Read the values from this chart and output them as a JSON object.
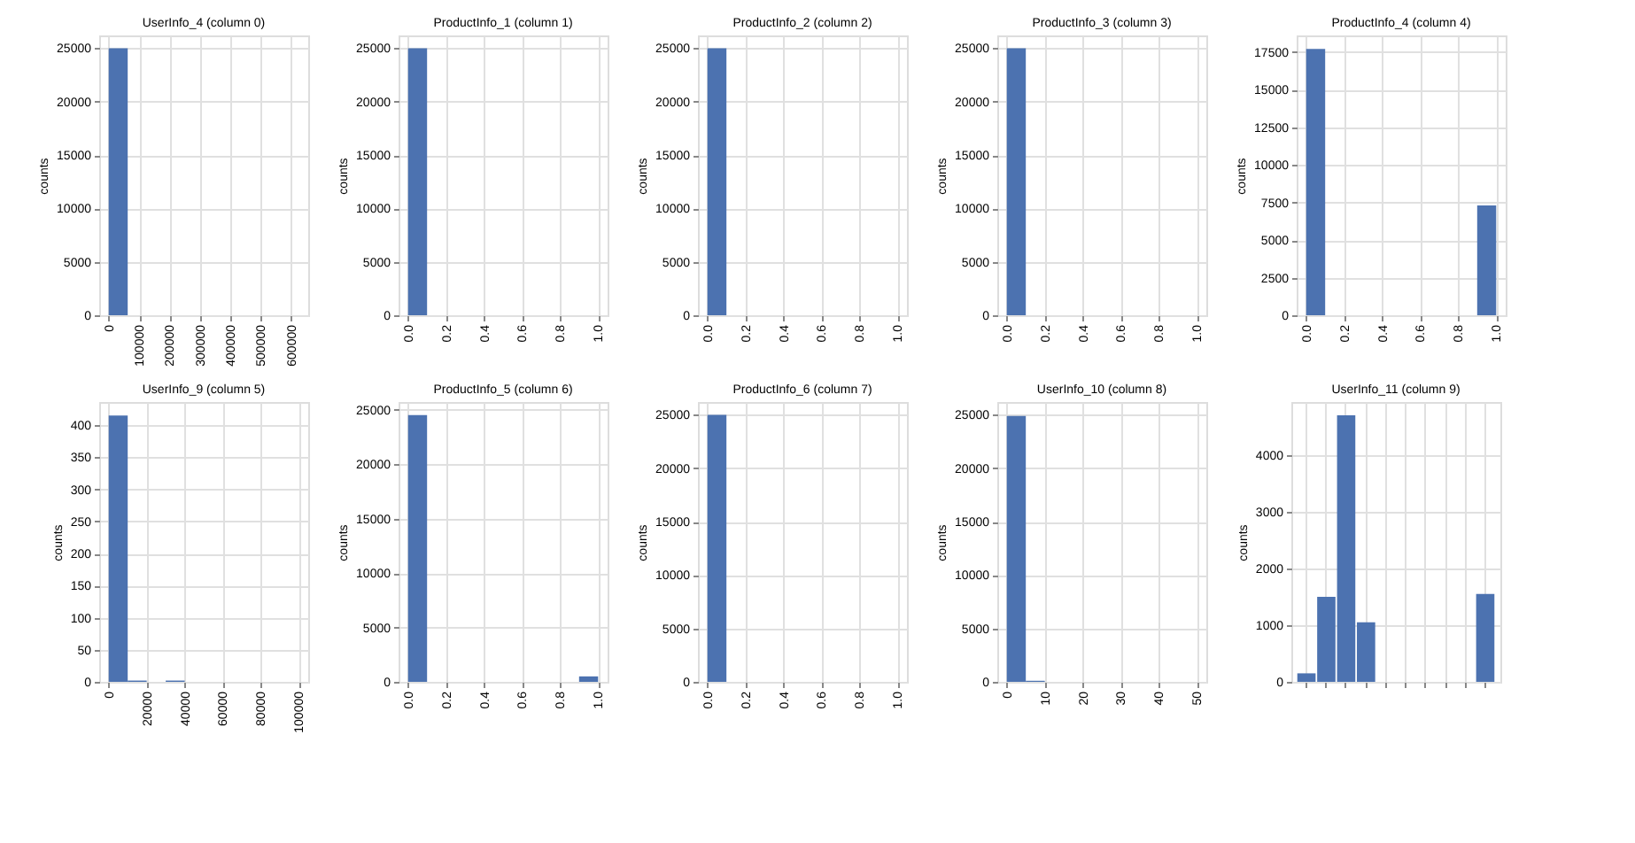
{
  "chart_data": [
    {
      "type": "histogram",
      "title": "UserInfo_4 (column 0)",
      "ylabel": "counts",
      "color": "#4c72b0",
      "grid": true,
      "bins": [
        0,
        62500,
        125000,
        187500,
        250000,
        312500,
        375000,
        437500,
        500000,
        562500,
        625000
      ],
      "values": [
        25000,
        0,
        0,
        0,
        0,
        0,
        0,
        0,
        0,
        0
      ],
      "xlim": [
        -31250,
        656250
      ],
      "ylim": [
        0,
        26200
      ],
      "xticks": [
        0,
        100000,
        200000,
        300000,
        400000,
        500000,
        600000
      ],
      "yticks": [
        0,
        5000,
        10000,
        15000,
        20000,
        25000
      ]
    },
    {
      "type": "histogram",
      "title": "ProductInfo_1 (column 1)",
      "ylabel": "counts",
      "color": "#4c72b0",
      "grid": true,
      "bins": [
        0,
        0.1,
        0.2,
        0.3,
        0.4,
        0.5,
        0.6,
        0.7,
        0.8,
        0.9,
        1.0
      ],
      "values": [
        25000,
        0,
        0,
        0,
        0,
        0,
        0,
        0,
        0,
        0
      ],
      "xlim": [
        -0.05,
        1.05
      ],
      "ylim": [
        0,
        26200
      ],
      "xticks": [
        {
          "value": 0,
          "label": "0.0"
        },
        {
          "value": 0.2,
          "label": "0.2"
        },
        {
          "value": 0.4,
          "label": "0.4"
        },
        {
          "value": 0.6,
          "label": "0.6"
        },
        {
          "value": 0.8,
          "label": "0.8"
        },
        {
          "value": 1,
          "label": "1.0"
        }
      ],
      "yticks": [
        0,
        5000,
        10000,
        15000,
        20000,
        25000
      ]
    },
    {
      "type": "histogram",
      "title": "ProductInfo_2 (column 2)",
      "ylabel": "counts",
      "color": "#4c72b0",
      "grid": true,
      "bins": [
        0,
        0.1,
        0.2,
        0.3,
        0.4,
        0.5,
        0.6,
        0.7,
        0.8,
        0.9,
        1.0
      ],
      "values": [
        25000,
        0,
        0,
        0,
        0,
        0,
        0,
        0,
        0,
        0
      ],
      "xlim": [
        -0.05,
        1.05
      ],
      "ylim": [
        0,
        26200
      ],
      "xticks": [
        {
          "value": 0,
          "label": "0.0"
        },
        {
          "value": 0.2,
          "label": "0.2"
        },
        {
          "value": 0.4,
          "label": "0.4"
        },
        {
          "value": 0.6,
          "label": "0.6"
        },
        {
          "value": 0.8,
          "label": "0.8"
        },
        {
          "value": 1,
          "label": "1.0"
        }
      ],
      "yticks": [
        0,
        5000,
        10000,
        15000,
        20000,
        25000
      ]
    },
    {
      "type": "histogram",
      "title": "ProductInfo_3 (column 3)",
      "ylabel": "counts",
      "color": "#4c72b0",
      "grid": true,
      "bins": [
        0,
        0.1,
        0.2,
        0.3,
        0.4,
        0.5,
        0.6,
        0.7,
        0.8,
        0.9,
        1.0
      ],
      "values": [
        25000,
        0,
        0,
        0,
        0,
        0,
        0,
        0,
        0,
        0
      ],
      "xlim": [
        -0.05,
        1.05
      ],
      "ylim": [
        0,
        26200
      ],
      "xticks": [
        {
          "value": 0,
          "label": "0.0"
        },
        {
          "value": 0.2,
          "label": "0.2"
        },
        {
          "value": 0.4,
          "label": "0.4"
        },
        {
          "value": 0.6,
          "label": "0.6"
        },
        {
          "value": 0.8,
          "label": "0.8"
        },
        {
          "value": 1,
          "label": "1.0"
        }
      ],
      "yticks": [
        0,
        5000,
        10000,
        15000,
        20000,
        25000
      ]
    },
    {
      "type": "histogram",
      "title": "ProductInfo_4 (column 4)",
      "ylabel": "counts",
      "color": "#4c72b0",
      "grid": true,
      "bins": [
        0,
        0.1,
        0.2,
        0.3,
        0.4,
        0.5,
        0.6,
        0.7,
        0.8,
        0.9,
        1.0
      ],
      "values": [
        17700,
        0,
        0,
        0,
        0,
        0,
        0,
        0,
        0,
        7300
      ],
      "xlim": [
        -0.05,
        1.05
      ],
      "ylim": [
        0,
        18600
      ],
      "xticks": [
        {
          "value": 0,
          "label": "0.0"
        },
        {
          "value": 0.2,
          "label": "0.2"
        },
        {
          "value": 0.4,
          "label": "0.4"
        },
        {
          "value": 0.6,
          "label": "0.6"
        },
        {
          "value": 0.8,
          "label": "0.8"
        },
        {
          "value": 1,
          "label": "1.0"
        }
      ],
      "yticks": [
        0,
        2500,
        5000,
        7500,
        10000,
        12500,
        15000,
        17500
      ]
    },
    {
      "type": "histogram",
      "title": "UserInfo_9 (column 5)",
      "ylabel": "counts",
      "color": "#4c72b0",
      "grid": true,
      "bins": [
        0,
        10000,
        20000,
        30000,
        40000,
        50000,
        60000,
        70000,
        80000,
        90000,
        100000
      ],
      "values": [
        415,
        2,
        0,
        2,
        0,
        0,
        0,
        0,
        0,
        0
      ],
      "xlim": [
        -5000,
        105000
      ],
      "ylim": [
        0,
        436
      ],
      "xticks": [
        0,
        20000,
        40000,
        60000,
        80000,
        100000
      ],
      "yticks": [
        0,
        50,
        100,
        150,
        200,
        250,
        300,
        350,
        400
      ]
    },
    {
      "type": "histogram",
      "title": "ProductInfo_5 (column 6)",
      "ylabel": "counts",
      "color": "#4c72b0",
      "grid": true,
      "bins": [
        0,
        0.1,
        0.2,
        0.3,
        0.4,
        0.5,
        0.6,
        0.7,
        0.8,
        0.9,
        1.0
      ],
      "values": [
        24500,
        0,
        0,
        0,
        0,
        0,
        0,
        0,
        0,
        500
      ],
      "xlim": [
        -0.05,
        1.05
      ],
      "ylim": [
        0,
        25700
      ],
      "xticks": [
        {
          "value": 0,
          "label": "0.0"
        },
        {
          "value": 0.2,
          "label": "0.2"
        },
        {
          "value": 0.4,
          "label": "0.4"
        },
        {
          "value": 0.6,
          "label": "0.6"
        },
        {
          "value": 0.8,
          "label": "0.8"
        },
        {
          "value": 1,
          "label": "1.0"
        }
      ],
      "yticks": [
        0,
        5000,
        10000,
        15000,
        20000,
        25000
      ]
    },
    {
      "type": "histogram",
      "title": "ProductInfo_6 (column 7)",
      "ylabel": "counts",
      "color": "#4c72b0",
      "grid": true,
      "bins": [
        0,
        0.1,
        0.2,
        0.3,
        0.4,
        0.5,
        0.6,
        0.7,
        0.8,
        0.9,
        1.0
      ],
      "values": [
        25000,
        0,
        0,
        0,
        0,
        0,
        0,
        0,
        0,
        0
      ],
      "xlim": [
        -0.05,
        1.05
      ],
      "ylim": [
        0,
        26200
      ],
      "xticks": [
        {
          "value": 0,
          "label": "0.0"
        },
        {
          "value": 0.2,
          "label": "0.2"
        },
        {
          "value": 0.4,
          "label": "0.4"
        },
        {
          "value": 0.6,
          "label": "0.6"
        },
        {
          "value": 0.8,
          "label": "0.8"
        },
        {
          "value": 1,
          "label": "1.0"
        }
      ],
      "yticks": [
        0,
        5000,
        10000,
        15000,
        20000,
        25000
      ]
    },
    {
      "type": "histogram",
      "title": "UserInfo_10 (column 8)",
      "ylabel": "counts",
      "color": "#4c72b0",
      "grid": true,
      "bins": [
        0,
        5,
        10,
        15,
        20,
        25,
        30,
        35,
        40,
        45,
        50
      ],
      "values": [
        24900,
        100,
        0,
        0,
        0,
        0,
        0,
        0,
        0,
        0
      ],
      "xlim": [
        -2.5,
        52.5
      ],
      "ylim": [
        0,
        26200
      ],
      "xticks": [
        0,
        10,
        20,
        30,
        40,
        50
      ],
      "yticks": [
        0,
        5000,
        10000,
        15000,
        20000,
        25000
      ]
    },
    {
      "type": "bar",
      "title": "UserInfo_11 (column 9)",
      "ylabel": "counts",
      "color": "#4c72b0",
      "grid": true,
      "categories": [
        null,
        null,
        null,
        null,
        null,
        null,
        null,
        null,
        null,
        null
      ],
      "values": [
        150,
        1500,
        4700,
        1050,
        0,
        0,
        0,
        0,
        0,
        1550
      ],
      "ylim": [
        0,
        4935
      ],
      "yticks": [
        0,
        1000,
        2000,
        3000,
        4000
      ]
    }
  ]
}
